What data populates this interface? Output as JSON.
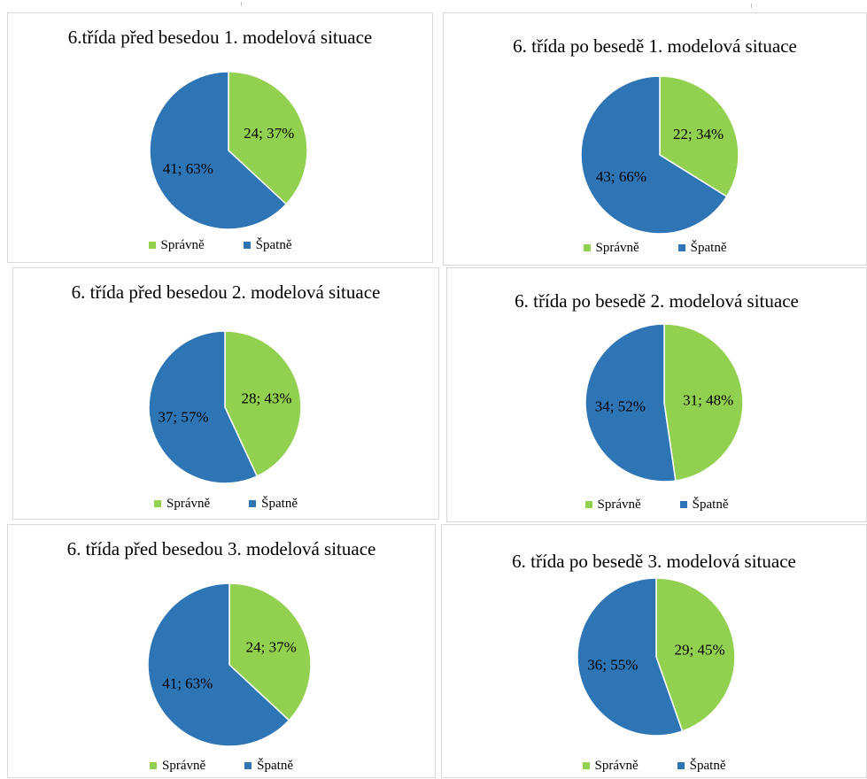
{
  "colors": {
    "spravne": "#92D050",
    "spatne": "#2E75B6"
  },
  "legend": {
    "spravne": "Správně",
    "spatne": "Špatně"
  },
  "chart_data": [
    {
      "type": "pie",
      "title": "6.třída před besedou 1. modelová situace",
      "categories": [
        "Správně",
        "Špatně"
      ],
      "values": [
        24,
        41
      ],
      "data_labels": [
        "24; 37%",
        "41; 63%"
      ]
    },
    {
      "type": "pie",
      "title": "6. třída po besedě 1. modelová situace",
      "categories": [
        "Správně",
        "Špatně"
      ],
      "values": [
        22,
        43
      ],
      "data_labels": [
        "22; 34%",
        "43; 66%"
      ]
    },
    {
      "type": "pie",
      "title": "6. třída před besedou 2. modelová situace",
      "categories": [
        "Správně",
        "Špatně"
      ],
      "values": [
        28,
        37
      ],
      "data_labels": [
        "28; 43%",
        "37; 57%"
      ]
    },
    {
      "type": "pie",
      "title": "6. třída po besedě 2. modelová situace",
      "categories": [
        "Správně",
        "Špatně"
      ],
      "values": [
        31,
        34
      ],
      "data_labels": [
        "31; 48%",
        "34; 52%"
      ]
    },
    {
      "type": "pie",
      "title": "6. třída před besedou 3. modelová situace",
      "categories": [
        "Správně",
        "Špatně"
      ],
      "values": [
        24,
        41
      ],
      "data_labels": [
        "24; 37%",
        "41; 63%"
      ]
    },
    {
      "type": "pie",
      "title": "6. třída po besedě 3. modelová situace",
      "categories": [
        "Správně",
        "Špatně"
      ],
      "values": [
        29,
        36
      ],
      "data_labels": [
        "29; 45%",
        "36; 55%"
      ]
    }
  ]
}
